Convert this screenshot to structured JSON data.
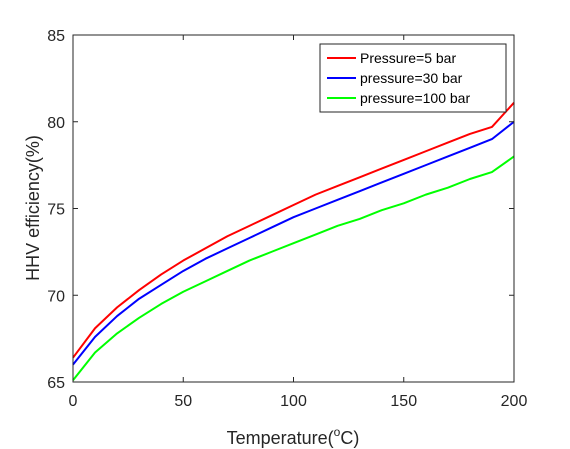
{
  "chart_data": {
    "type": "line",
    "title": "",
    "xlabel_main": "Temperature(",
    "xlabel_sup": "o",
    "xlabel_end": "C)",
    "ylabel": "HHV efficiency(%)",
    "xlim": [
      0,
      200
    ],
    "ylim": [
      65,
      85
    ],
    "xticks": [
      0,
      50,
      100,
      150,
      200
    ],
    "yticks": [
      65,
      70,
      75,
      80,
      85
    ],
    "grid": false,
    "legend_position": "top-right",
    "x": [
      0,
      10,
      20,
      30,
      40,
      50,
      60,
      70,
      80,
      90,
      100,
      110,
      120,
      130,
      140,
      150,
      160,
      170,
      180,
      190,
      200
    ],
    "series": [
      {
        "name": "Pressure=5 bar",
        "color": "#ff0000",
        "values": [
          66.4,
          68.1,
          69.3,
          70.3,
          71.2,
          72.0,
          72.7,
          73.4,
          74.0,
          74.6,
          75.2,
          75.8,
          76.3,
          76.8,
          77.3,
          77.8,
          78.3,
          78.8,
          79.3,
          79.7,
          81.1
        ]
      },
      {
        "name": "pressure=30 bar",
        "color": "#0000ff",
        "values": [
          66.0,
          67.6,
          68.8,
          69.8,
          70.6,
          71.4,
          72.1,
          72.7,
          73.3,
          73.9,
          74.5,
          75.0,
          75.5,
          76.0,
          76.5,
          77.0,
          77.5,
          78.0,
          78.5,
          79.0,
          80.0
        ]
      },
      {
        "name": "pressure=100 bar",
        "color": "#00ff00",
        "values": [
          65.1,
          66.7,
          67.8,
          68.7,
          69.5,
          70.2,
          70.8,
          71.4,
          72.0,
          72.5,
          73.0,
          73.5,
          74.0,
          74.4,
          74.9,
          75.3,
          75.8,
          76.2,
          76.7,
          77.1,
          78.0
        ]
      }
    ]
  }
}
